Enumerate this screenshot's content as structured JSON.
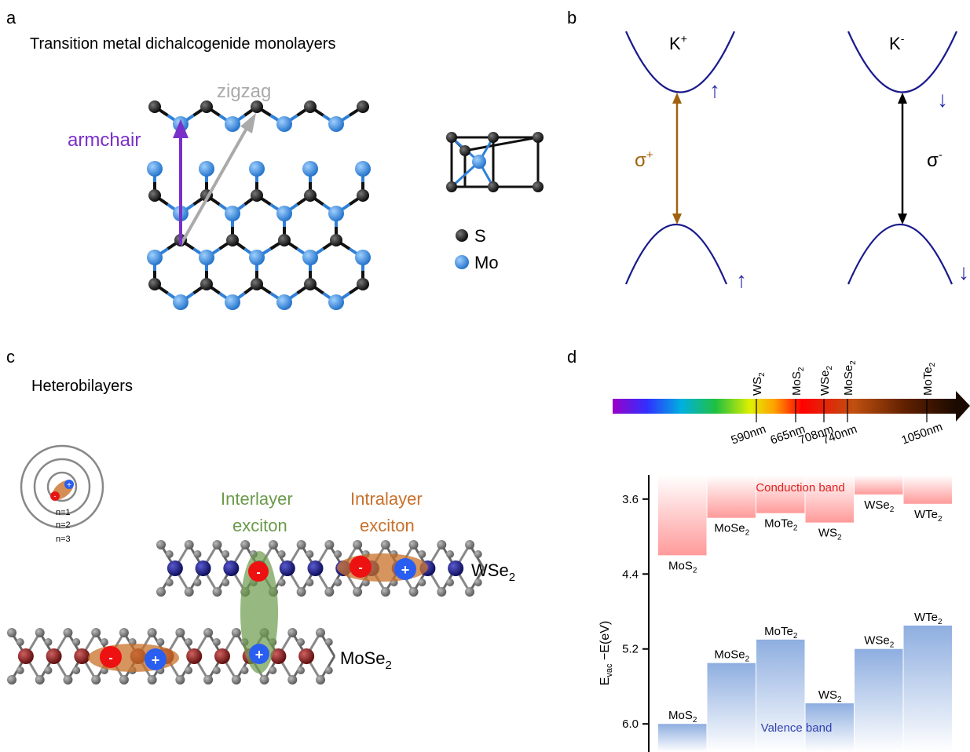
{
  "panel_a": {
    "letter": "a",
    "title": "Transition metal dichalcogenide monolayers",
    "zigzag_label": "zigzag",
    "armchair_label": "armchair",
    "legend": [
      {
        "symbol": "S",
        "color": "#111111"
      },
      {
        "symbol": "Mo",
        "color": "#2f80d8"
      }
    ]
  },
  "panel_b": {
    "letter": "b",
    "valleys": [
      {
        "label": "K",
        "sign": "+",
        "transition": "σ",
        "transition_sign": "+",
        "spin_glyph": "↑",
        "arrow_color": "#a0620f"
      },
      {
        "label": "K",
        "sign": "-",
        "transition": "σ",
        "transition_sign": "-",
        "spin_glyph": "↓",
        "arrow_color": "#000000"
      }
    ],
    "band_color": "#1a1a8c"
  },
  "panel_c": {
    "letter": "c",
    "title": "Heterobilayers",
    "rydberg_levels": [
      "n=1",
      "n=2",
      "n=3"
    ],
    "interlayer_label": [
      "Interlayer",
      "exciton"
    ],
    "intralayer_label": [
      "Intralayer",
      "exciton"
    ],
    "layers": [
      {
        "name": "WSe",
        "sub": "2",
        "metal_color": "#14147a"
      },
      {
        "name": "MoSe",
        "sub": "2",
        "metal_color": "#7a1414"
      }
    ],
    "interlayer_color": "#6b9a4a",
    "intralayer_color": "#c8702a",
    "electron_sign": "-",
    "hole_sign": "+"
  },
  "panel_d": {
    "letter": "d",
    "spectrum": [
      {
        "material": "WS",
        "sub": "2",
        "wavelength": "590nm"
      },
      {
        "material": "MoS",
        "sub": "2",
        "wavelength": "665nm"
      },
      {
        "material": "WSe",
        "sub": "2",
        "wavelength": "708nm"
      },
      {
        "material": "MoSe",
        "sub": "2",
        "wavelength": "740nm"
      },
      {
        "material": "MoTe",
        "sub": "2",
        "wavelength": "1050nm"
      }
    ],
    "ylabel": {
      "base": "E",
      "sub": "vac",
      "rest": " −E(eV)"
    },
    "conduction_label": "Conduction band",
    "valence_label": "Valence band"
  },
  "chart_data": {
    "type": "bar",
    "ylabel": "E_vac −E(eV)",
    "y_inverted": true,
    "ylim": [
      3.3,
      6.3
    ],
    "yticks": [
      "3.6",
      "4.4",
      "5.2",
      "6.0"
    ],
    "categories": [
      "MoS2",
      "MoSe2",
      "MoTe2",
      "WS2",
      "WSe2",
      "WTe2"
    ],
    "series": [
      {
        "name": "Conduction band",
        "values": [
          4.2,
          3.8,
          3.75,
          3.85,
          3.55,
          3.65
        ],
        "color": "#ff9a9a"
      },
      {
        "name": "Valence band",
        "values": [
          6.0,
          5.35,
          5.1,
          5.78,
          5.2,
          4.95
        ],
        "color": "#8eaee0"
      }
    ],
    "grid": false
  }
}
